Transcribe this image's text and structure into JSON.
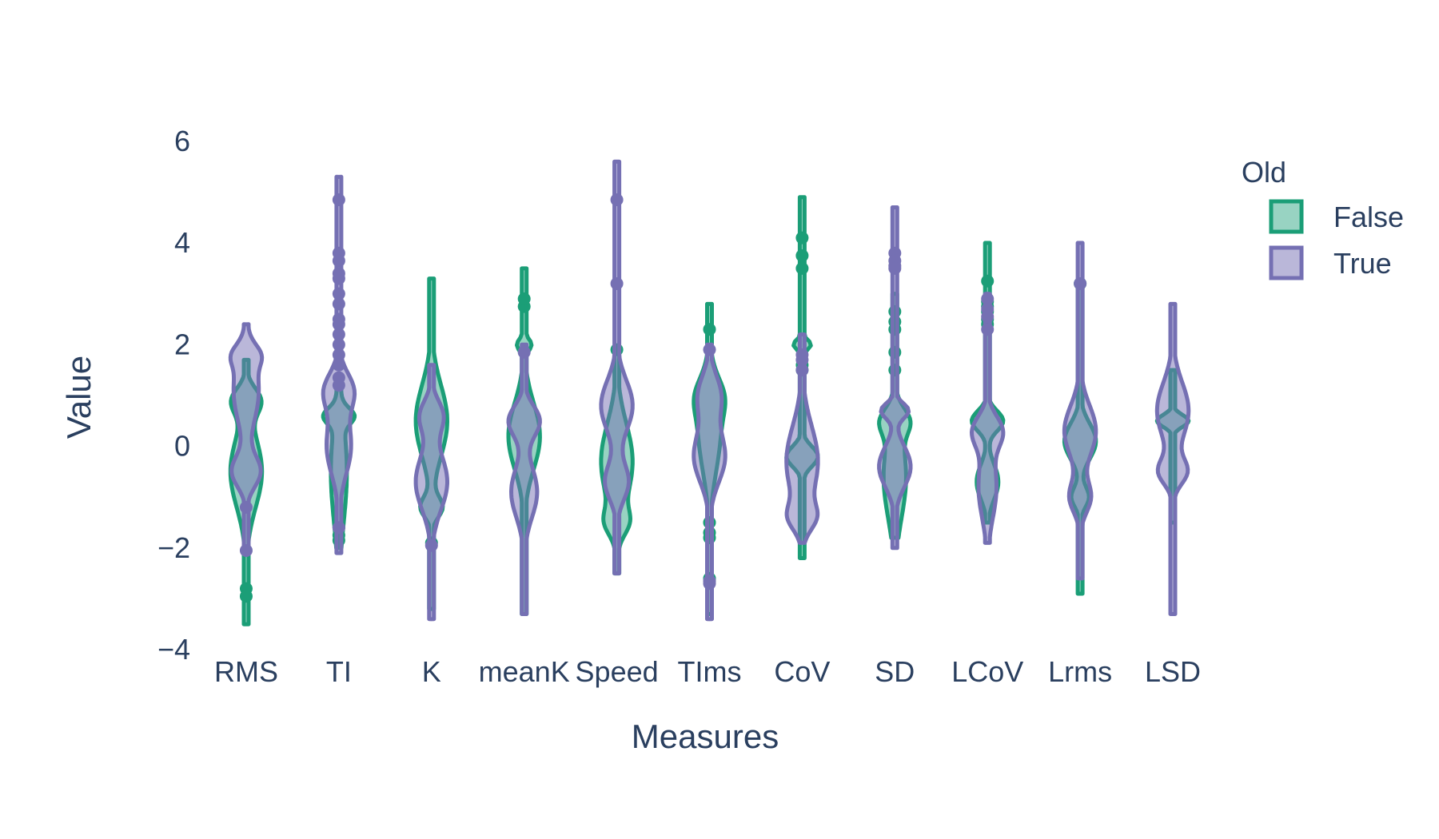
{
  "chart_data": {
    "type": "violin",
    "title": "",
    "xlabel": "Measures",
    "ylabel": "Value",
    "ylim": [
      -4,
      6.5
    ],
    "yticks": [
      -4,
      -2,
      0,
      2,
      4,
      6
    ],
    "ytick_labels": [
      "−4",
      "−2",
      "0",
      "2",
      "4",
      "6"
    ],
    "grid": false,
    "categories": [
      "RMS",
      "TI",
      "K",
      "meanK",
      "Speed",
      "TIms",
      "CoV",
      "SD",
      "LCoV",
      "Lrms",
      "LSD"
    ],
    "legend": {
      "title": "Old",
      "placement": "top-right"
    },
    "series": [
      {
        "name": "False",
        "color": "#1b9e77",
        "fill": "rgba(27,158,119,0.45)",
        "violins": [
          {
            "min": -3.5,
            "max": 1.7,
            "peaks": [
              [
                -0.5,
                0.7,
                0.6
              ],
              [
                0.9,
                0.25,
                0.5
              ]
            ],
            "outliers": [
              -2.8,
              -2.95
            ]
          },
          {
            "min": -2.0,
            "max": 1.4,
            "peaks": [
              [
                -0.5,
                1.0,
                0.35
              ],
              [
                0.6,
                0.15,
                0.5
              ]
            ],
            "outliers": [
              -1.6,
              -1.75,
              -1.85
            ]
          },
          {
            "min": -3.2,
            "max": 3.3,
            "peaks": [
              [
                0.5,
                0.7,
                0.9
              ],
              [
                -1.2,
                0.2,
                0.6
              ]
            ],
            "outliers": [
              -1.9
            ]
          },
          {
            "min": -3.3,
            "max": 3.5,
            "peaks": [
              [
                0.2,
                0.65,
                0.9
              ],
              [
                2.0,
                0.12,
                0.4
              ]
            ],
            "outliers": [
              2.75,
              2.9
            ]
          },
          {
            "min": -2.5,
            "max": 1.9,
            "peaks": [
              [
                -0.3,
                0.75,
                0.9
              ],
              [
                -1.5,
                0.25,
                0.5
              ]
            ],
            "outliers": [
              1.9
            ]
          },
          {
            "min": -3.3,
            "max": 2.8,
            "peaks": [
              [
                0.3,
                0.8,
                0.7
              ],
              [
                1.0,
                0.35,
                0.5
              ]
            ],
            "outliers": [
              2.3,
              -1.5,
              -1.7,
              -1.8,
              -2.6
            ]
          },
          {
            "min": -2.2,
            "max": 4.9,
            "peaks": [
              [
                -0.2,
                0.2,
                0.9
              ],
              [
                2.0,
                0.1,
                0.5
              ]
            ],
            "outliers": [
              3.5,
              3.75,
              4.1,
              1.5,
              1.6
            ]
          },
          {
            "min": -1.8,
            "max": 3.0,
            "peaks": [
              [
                -0.6,
                0.8,
                0.6
              ],
              [
                0.5,
                0.25,
                0.6
              ]
            ],
            "outliers": [
              1.5,
              1.85,
              2.3,
              2.45,
              2.65
            ]
          },
          {
            "min": -1.5,
            "max": 4.0,
            "peaks": [
              [
                -0.7,
                0.35,
                0.55
              ],
              [
                0.5,
                0.2,
                0.8
              ]
            ],
            "outliers": [
              3.25,
              2.4,
              2.5,
              2.65,
              2.75,
              2.85
            ]
          },
          {
            "min": -2.9,
            "max": 3.2,
            "peaks": [
              [
                0.1,
                0.35,
                0.9
              ],
              [
                -1.0,
                0.2,
                0.5
              ]
            ],
            "outliers": [
              3.2
            ]
          },
          {
            "min": -1.5,
            "max": 1.5,
            "peaks": [
              [
                0.5,
                0.12,
                0.7
              ]
            ],
            "outliers": []
          }
        ]
      },
      {
        "name": "True",
        "color": "#7570b3",
        "fill": "rgba(117,112,179,0.5)",
        "violins": [
          {
            "min": -2.1,
            "max": 2.4,
            "peaks": [
              [
                1.1,
                0.65,
                0.45
              ],
              [
                -0.5,
                0.3,
                0.5
              ],
              [
                1.8,
                0.2,
                0.3
              ]
            ],
            "outliers": [
              -1.2,
              -2.05
            ]
          },
          {
            "min": -2.1,
            "max": 5.3,
            "peaks": [
              [
                0.0,
                0.55,
                0.35
              ],
              [
                1.1,
                0.35,
                0.4
              ]
            ],
            "outliers": [
              4.85,
              3.8,
              3.65,
              3.4,
              3.3,
              3.0,
              2.8,
              2.5,
              2.4,
              2.2,
              2.0,
              1.8,
              1.6,
              1.35,
              1.2,
              -1.6
            ]
          },
          {
            "min": -3.4,
            "max": 1.6,
            "peaks": [
              [
                -0.7,
                0.55,
                0.7
              ],
              [
                0.6,
                0.3,
                0.5
              ]
            ],
            "outliers": [
              -1.95
            ]
          },
          {
            "min": -3.3,
            "max": 2.0,
            "peaks": [
              [
                -0.9,
                0.5,
                0.5
              ],
              [
                0.5,
                0.3,
                0.6
              ]
            ],
            "outliers": [
              1.85
            ]
          },
          {
            "min": -2.5,
            "max": 5.6,
            "peaks": [
              [
                0.8,
                0.5,
                0.8
              ],
              [
                -0.7,
                0.35,
                0.6
              ]
            ],
            "outliers": [
              4.85,
              3.2
            ]
          },
          {
            "min": -3.4,
            "max": 2.0,
            "peaks": [
              [
                -0.2,
                0.5,
                0.7
              ],
              [
                1.0,
                0.4,
                0.5
              ]
            ],
            "outliers": [
              1.9,
              -2.65,
              -2.7
            ]
          },
          {
            "min": -1.9,
            "max": 2.2,
            "peaks": [
              [
                -0.3,
                0.7,
                0.6
              ],
              [
                -1.4,
                0.25,
                0.4
              ]
            ],
            "outliers": [
              1.8,
              1.7,
              1.5
            ]
          },
          {
            "min": -2.0,
            "max": 4.7,
            "peaks": [
              [
                -0.4,
                0.4,
                0.7
              ],
              [
                0.7,
                0.15,
                0.6
              ]
            ],
            "outliers": [
              3.8,
              3.65,
              3.55,
              3.5
            ]
          },
          {
            "min": -1.9,
            "max": 3.0,
            "peaks": [
              [
                -0.8,
                0.6,
                0.45
              ],
              [
                0.3,
                0.3,
                0.7
              ]
            ],
            "outliers": [
              2.9,
              2.7,
              2.55,
              2.3
            ]
          },
          {
            "min": -2.6,
            "max": 4.0,
            "peaks": [
              [
                0.3,
                0.5,
                0.9
              ],
              [
                -1.0,
                0.3,
                0.6
              ]
            ],
            "outliers": [
              3.2
            ]
          },
          {
            "min": -3.3,
            "max": 2.8,
            "peaks": [
              [
                0.7,
                0.55,
                0.7
              ],
              [
                -0.5,
                0.25,
                0.6
              ]
            ],
            "outliers": []
          }
        ]
      }
    ]
  }
}
